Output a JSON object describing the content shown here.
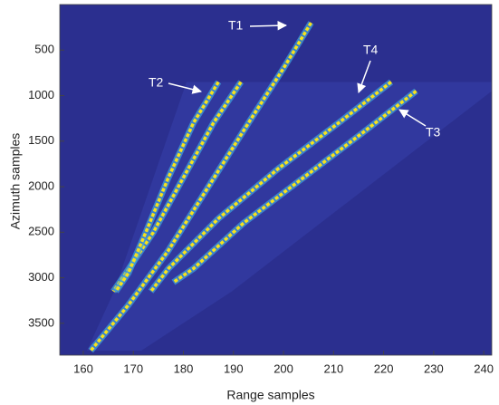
{
  "chart_data": {
    "type": "line",
    "xlabel": "Range samples",
    "ylabel": "Azimuth samples",
    "xlim": [
      155.3,
      241.6
    ],
    "ylim": [
      0,
      3850
    ],
    "yreverse": true,
    "grid": false,
    "xticks": [
      160,
      170,
      180,
      190,
      200,
      210,
      220,
      230,
      240
    ],
    "yticks": [
      500,
      1000,
      1500,
      2000,
      2500,
      3000,
      3500
    ],
    "background": "#2b2f8f",
    "color": "#f7e21c",
    "glow": "#3fa4e0",
    "series": [
      {
        "x": [
          205.5,
          200,
          193,
          185,
          177,
          169,
          161.5
        ],
        "values": [
          200,
          700,
          1300,
          2000,
          2700,
          3300,
          3800
        ]
      },
      {
        "x": [
          191.5,
          186,
          180,
          174,
          168.5,
          166
        ],
        "values": [
          850,
          1300,
          1900,
          2500,
          2950,
          3150
        ]
      },
      {
        "x": [
          187,
          182,
          177,
          172.5,
          169,
          166.5
        ],
        "values": [
          850,
          1300,
          1900,
          2500,
          2950,
          3150
        ]
      },
      {
        "x": [
          221.5,
          211,
          199,
          187,
          177,
          173.5
        ],
        "values": [
          850,
          1300,
          1800,
          2350,
          2900,
          3150
        ]
      },
      {
        "x": [
          226.5,
          216,
          204,
          192,
          182,
          178
        ],
        "values": [
          950,
          1400,
          1900,
          2400,
          2900,
          3050
        ]
      }
    ],
    "annotations": [
      "T1",
      "T2",
      "T3",
      "T4"
    ]
  }
}
